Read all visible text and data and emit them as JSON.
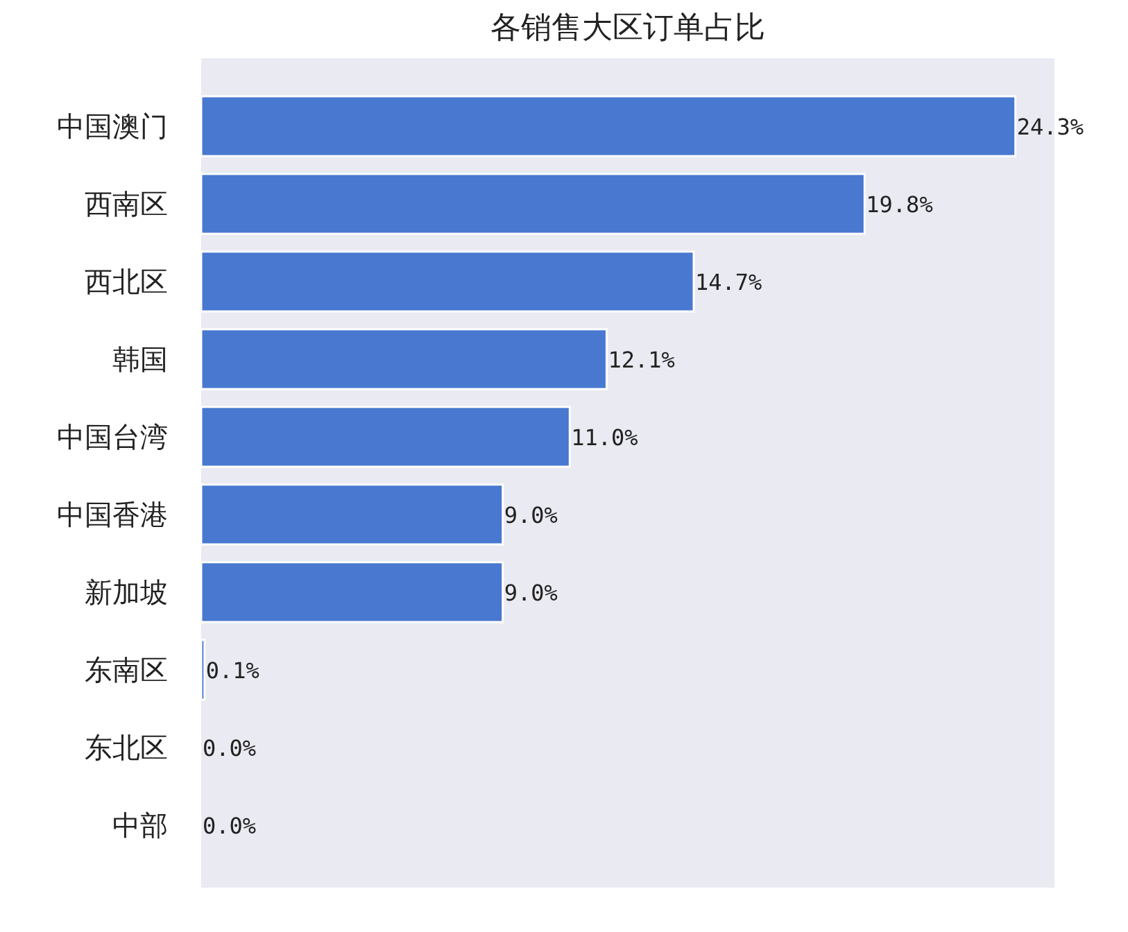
{
  "chart_data": {
    "type": "bar",
    "orientation": "horizontal",
    "title": "各销售大区订单占比",
    "categories": [
      "中国澳门",
      "西南区",
      "西北区",
      "韩国",
      "中国台湾",
      "中国香港",
      "新加坡",
      "东南区",
      "东北区",
      "中部"
    ],
    "values": [
      24.3,
      19.8,
      14.7,
      12.1,
      11.0,
      9.0,
      9.0,
      0.1,
      0.0,
      0.0
    ],
    "value_labels": [
      "24.3%",
      "19.8%",
      "14.7%",
      "12.1%",
      "11.0%",
      "9.0%",
      "9.0%",
      "0.1%",
      "0.0%",
      "0.0%"
    ],
    "color": "#4878d0"
  }
}
